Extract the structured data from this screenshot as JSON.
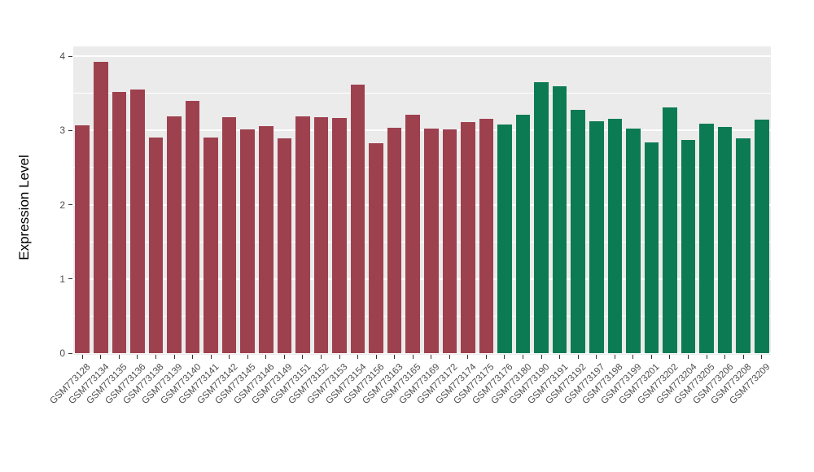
{
  "chart_data": {
    "type": "bar",
    "title": "",
    "xlabel": "",
    "ylabel": "Expression Level",
    "ylim": [
      0,
      4
    ],
    "yticks": [
      0,
      1,
      2,
      3,
      4
    ],
    "yticks_minor": [
      0.5,
      1.5,
      2.5,
      3.5
    ],
    "grid": "on",
    "legend": "none",
    "panel_background": "#ebebeb",
    "gridline_color": "#ffffff",
    "group_colors": [
      "#9e414f",
      "#0c7b54"
    ],
    "categories": [
      "GSM773128",
      "GSM773134",
      "GSM773135",
      "GSM773136",
      "GSM773138",
      "GSM773139",
      "GSM773140",
      "GSM773141",
      "GSM773142",
      "GSM773145",
      "GSM773146",
      "GSM773149",
      "GSM773151",
      "GSM773152",
      "GSM773153",
      "GSM773154",
      "GSM773156",
      "GSM773163",
      "GSM773165",
      "GSM773169",
      "GSM773172",
      "GSM773174",
      "GSM773175",
      "GSM773176",
      "GSM773180",
      "GSM773190",
      "GSM773191",
      "GSM773192",
      "GSM773197",
      "GSM773198",
      "GSM773199",
      "GSM773201",
      "GSM773202",
      "GSM773204",
      "GSM773205",
      "GSM773206",
      "GSM773208",
      "GSM773209"
    ],
    "values": [
      3.07,
      3.92,
      3.52,
      3.55,
      2.9,
      3.19,
      3.4,
      2.9,
      3.18,
      3.01,
      3.06,
      2.89,
      3.19,
      3.18,
      3.17,
      3.62,
      2.83,
      3.04,
      3.21,
      3.03,
      3.01,
      3.11,
      3.16,
      3.08,
      3.21,
      3.65,
      3.59,
      3.28,
      3.12,
      3.16,
      3.02,
      2.84,
      3.31,
      2.87,
      3.09,
      3.05,
      2.89,
      3.15
    ],
    "groups": [
      0,
      0,
      0,
      0,
      0,
      0,
      0,
      0,
      0,
      0,
      0,
      0,
      0,
      0,
      0,
      0,
      0,
      0,
      0,
      0,
      0,
      0,
      0,
      1,
      1,
      1,
      1,
      1,
      1,
      1,
      1,
      1,
      1,
      1,
      1,
      1,
      1,
      1
    ]
  }
}
